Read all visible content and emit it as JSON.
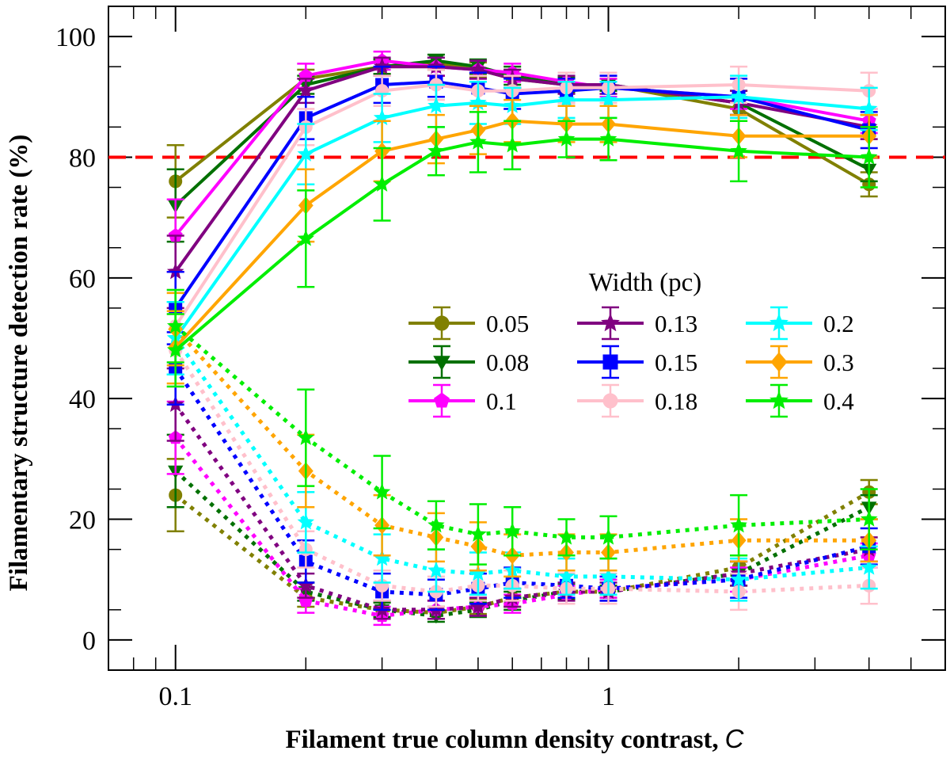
{
  "chart_data": {
    "type": "line",
    "title": "",
    "xlabel": "Filament true column density contrast,",
    "xlabel_var": "C",
    "ylabel": "Filamentary structure detection rate (%)",
    "xscale": "log",
    "xlim": [
      0.07,
      6
    ],
    "ylim": [
      -5,
      105
    ],
    "x_ticks": [
      0.1,
      1
    ],
    "x_tick_labels": [
      "0.1",
      "1"
    ],
    "y_ticks": [
      0,
      20,
      40,
      60,
      80,
      100
    ],
    "y_tick_labels": [
      "0",
      "20",
      "40",
      "60",
      "80",
      "100"
    ],
    "threshold": {
      "y": 80,
      "color": "#ff0000",
      "style": "dashed"
    },
    "legend": {
      "title": "Width (pc)",
      "position": "center-right",
      "columns": 3
    },
    "x": [
      0.1,
      0.2,
      0.3,
      0.4,
      0.5,
      0.6,
      0.8,
      1.0,
      2.0,
      4.0
    ],
    "series": [
      {
        "name": "0.05",
        "color": "#808000",
        "marker": "circle",
        "solid": [
          76,
          93,
          95,
          95.5,
          94.5,
          93,
          92,
          92,
          88,
          75.5
        ],
        "solid_err": [
          6,
          1.5,
          1.2,
          1,
          1.2,
          1.5,
          1.2,
          1,
          2,
          2
        ],
        "dotted": [
          24,
          7,
          5,
          4.5,
          5.5,
          7,
          8,
          8,
          12,
          24.5
        ],
        "dotted_err": [
          6,
          1.5,
          1.2,
          1,
          1.2,
          1.5,
          1.2,
          1,
          2,
          2
        ]
      },
      {
        "name": "0.08",
        "color": "#007000",
        "marker": "triangle-down",
        "solid": [
          72,
          92,
          95,
          96,
          95,
          93.5,
          92,
          92,
          89,
          78
        ],
        "solid_err": [
          6,
          1.5,
          1.2,
          1,
          1.2,
          1.5,
          1.2,
          1,
          2,
          2
        ],
        "dotted": [
          28,
          8,
          5,
          4,
          5,
          6.5,
          8,
          8,
          11,
          22
        ],
        "dotted_err": [
          6,
          1.5,
          1.2,
          1,
          1.2,
          1.5,
          1.2,
          1,
          2,
          2
        ]
      },
      {
        "name": "0.1",
        "color": "#ff00ff",
        "marker": "pentagon",
        "solid": [
          67,
          93.5,
          96,
          95,
          94.5,
          94,
          92.5,
          91.5,
          90,
          86
        ],
        "solid_err": [
          6,
          2,
          1.5,
          1.5,
          1.5,
          1.5,
          1.5,
          1.5,
          2,
          2
        ],
        "dotted": [
          33.5,
          6.5,
          4,
          5,
          5.5,
          6,
          7.5,
          8.5,
          10,
          14
        ],
        "dotted_err": [
          6,
          2,
          1.5,
          1.5,
          1.5,
          1.5,
          1.5,
          1.5,
          2,
          2
        ]
      },
      {
        "name": "0.13",
        "color": "#800080",
        "marker": "star",
        "solid": [
          61,
          91,
          95,
          95,
          94.5,
          93,
          92,
          92,
          89,
          85
        ],
        "solid_err": [
          6,
          2,
          1.5,
          1.5,
          1.5,
          1.5,
          1.5,
          1.5,
          2,
          2
        ],
        "dotted": [
          39,
          9,
          5,
          5,
          5.5,
          7,
          8,
          8,
          11,
          15
        ],
        "dotted_err": [
          6,
          2,
          1.5,
          1.5,
          1.5,
          1.5,
          1.5,
          1.5,
          2,
          2
        ]
      },
      {
        "name": "0.15",
        "color": "#0000ff",
        "marker": "square",
        "solid": [
          55,
          86.5,
          92,
          92.5,
          91.5,
          90.5,
          91,
          91.5,
          90,
          84.5
        ],
        "solid_err": [
          6,
          3.5,
          3,
          2.5,
          2.5,
          2.5,
          2,
          2,
          3,
          3
        ],
        "dotted": [
          45,
          13,
          8,
          7.5,
          8.5,
          9.5,
          9,
          8.5,
          10,
          15.5
        ],
        "dotted_err": [
          6,
          3.5,
          3,
          2.5,
          2.5,
          2.5,
          2,
          2,
          3,
          3
        ]
      },
      {
        "name": "0.18",
        "color": "#ffc0cb",
        "marker": "circle",
        "solid": [
          52,
          85,
          91,
          92,
          91,
          91,
          91.5,
          91.5,
          92,
          91
        ],
        "solid_err": [
          6,
          3,
          2.5,
          2.5,
          2.5,
          2.5,
          2.5,
          2.5,
          3,
          3
        ],
        "dotted": [
          48,
          15,
          9,
          8,
          9,
          9,
          8.5,
          8.5,
          8,
          9
        ],
        "dotted_err": [
          6,
          3,
          2.5,
          2.5,
          2.5,
          2.5,
          2.5,
          2.5,
          3,
          3
        ]
      },
      {
        "name": "0.2",
        "color": "#00ffff",
        "marker": "star",
        "solid": [
          50,
          80.5,
          86.5,
          88.5,
          89,
          88.5,
          89.5,
          89.5,
          90,
          88
        ],
        "solid_err": [
          6,
          5,
          4,
          3.5,
          3.5,
          3,
          3,
          3,
          3.5,
          3.5
        ],
        "dotted": [
          50,
          19.5,
          13.5,
          11.5,
          11,
          11.5,
          10.5,
          10.5,
          10,
          12
        ],
        "dotted_err": [
          6,
          5,
          4,
          3.5,
          3.5,
          3,
          3,
          3,
          3.5,
          3.5
        ]
      },
      {
        "name": "0.3",
        "color": "#ffa500",
        "marker": "diamond",
        "solid": [
          48.5,
          72,
          81,
          83,
          84.5,
          86,
          85.5,
          85.5,
          83.5,
          83.5
        ],
        "solid_err": [
          6,
          6,
          5,
          4,
          4,
          3.5,
          3,
          3,
          3.5,
          3.5
        ],
        "dotted": [
          51.5,
          28,
          19,
          17,
          15.5,
          14,
          14.5,
          14.5,
          16.5,
          16.5
        ],
        "dotted_err": [
          6,
          6,
          5,
          4,
          4,
          3.5,
          3,
          3,
          3.5,
          3.5
        ]
      },
      {
        "name": "0.4",
        "color": "#00ee00",
        "marker": "star",
        "solid": [
          48,
          66.5,
          75.5,
          81,
          82.5,
          82,
          83,
          83,
          81,
          80
        ],
        "solid_err": [
          6,
          8,
          6,
          4,
          5,
          4,
          3,
          3.5,
          5,
          5
        ],
        "dotted": [
          52,
          33.5,
          24.5,
          19,
          17.5,
          18,
          17,
          17,
          19,
          20
        ],
        "dotted_err": [
          6,
          8,
          6,
          4,
          5,
          4,
          3,
          3.5,
          5,
          5
        ]
      }
    ]
  }
}
